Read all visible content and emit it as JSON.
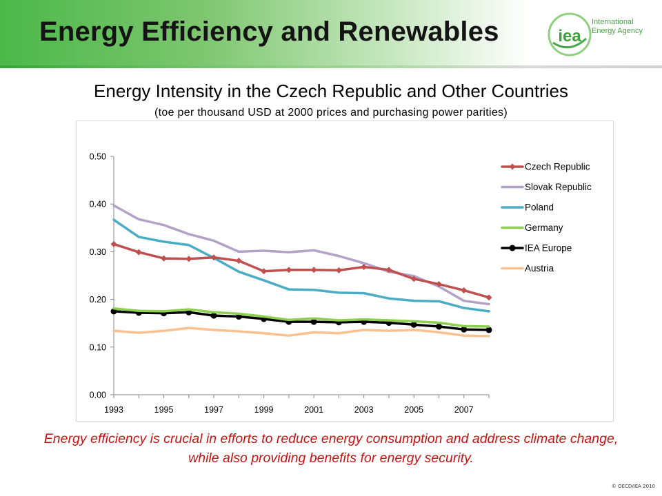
{
  "slide": {
    "title": "Energy Efficiency and Renewables",
    "logo_text": "iea",
    "logo_org_line1": "International",
    "logo_org_line2": "Energy Agency",
    "caption": "Energy efficiency is crucial in efforts to reduce energy consumption and address climate change, while also providing benefits for energy security.",
    "copyright": "© OECD/IEA 2010"
  },
  "chart_data": {
    "type": "line",
    "title": "Energy Intensity in the Czech Republic and Other Countries",
    "subtitle": "(toe per thousand USD at 2000 prices and purchasing power parities)",
    "xlabel": "",
    "ylabel": "",
    "x": [
      1993,
      1994,
      1995,
      1996,
      1997,
      1998,
      1999,
      2000,
      2001,
      2002,
      2003,
      2004,
      2005,
      2006,
      2007,
      2008
    ],
    "x_tick_labels": [
      "1993",
      "1995",
      "1997",
      "1999",
      "2001",
      "2003",
      "2005",
      "2007"
    ],
    "ylim": [
      0,
      0.5
    ],
    "y_tick_labels": [
      "0.00",
      "0.10",
      "0.20",
      "0.30",
      "0.40",
      "0.50"
    ],
    "grid": false,
    "legend_position": "right",
    "series": [
      {
        "name": "Czech Republic",
        "color": "#c0504d",
        "marker": "diamond",
        "values": [
          0.316,
          0.299,
          0.286,
          0.285,
          0.288,
          0.281,
          0.259,
          0.262,
          0.262,
          0.261,
          0.268,
          0.262,
          0.243,
          0.232,
          0.219,
          0.204
        ]
      },
      {
        "name": "Slovak Republic",
        "color": "#b3a2c7",
        "marker": "none",
        "values": [
          0.397,
          0.368,
          0.356,
          0.337,
          0.323,
          0.3,
          0.302,
          0.299,
          0.303,
          0.291,
          0.276,
          0.258,
          0.249,
          0.227,
          0.197,
          0.19
        ]
      },
      {
        "name": "Poland",
        "color": "#4bacc6",
        "marker": "none",
        "values": [
          0.367,
          0.331,
          0.321,
          0.314,
          0.287,
          0.258,
          0.24,
          0.221,
          0.22,
          0.214,
          0.213,
          0.202,
          0.197,
          0.196,
          0.182,
          0.175
        ]
      },
      {
        "name": "Germany",
        "color": "#8dcf4f",
        "marker": "none",
        "values": [
          0.181,
          0.176,
          0.175,
          0.179,
          0.173,
          0.17,
          0.164,
          0.157,
          0.16,
          0.156,
          0.158,
          0.156,
          0.154,
          0.151,
          0.144,
          0.143
        ]
      },
      {
        "name": "IEA Europe",
        "color": "#000000",
        "marker": "circle",
        "values": [
          0.175,
          0.172,
          0.171,
          0.173,
          0.166,
          0.164,
          0.159,
          0.153,
          0.153,
          0.152,
          0.153,
          0.151,
          0.147,
          0.143,
          0.137,
          0.136
        ]
      },
      {
        "name": "Austria",
        "color": "#fac090",
        "marker": "none",
        "values": [
          0.134,
          0.13,
          0.134,
          0.14,
          0.136,
          0.133,
          0.129,
          0.124,
          0.131,
          0.129,
          0.136,
          0.134,
          0.136,
          0.131,
          0.124,
          0.123
        ]
      }
    ]
  }
}
